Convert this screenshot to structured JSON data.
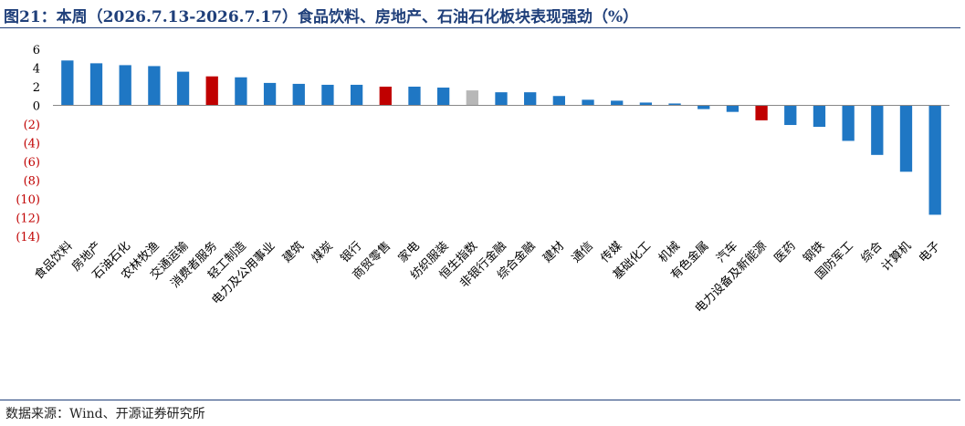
{
  "title": "图21：本周（2026.7.13-2026.7.17）食品饮料、房地产、石油石化板块表现强劲（%）",
  "source": "数据来源：Wind、开源证券研究所",
  "colors": {
    "default": "#1f77c4",
    "highlight": "#c00000",
    "index": "#b7b7b7",
    "title": "#1f3f7a",
    "negative_tick": "#c00000"
  },
  "chart_data": {
    "type": "bar",
    "title": "",
    "xlabel": "",
    "ylabel": "",
    "ylim": [
      -14,
      6
    ],
    "yticks": [
      6,
      4,
      2,
      0,
      -2,
      -4,
      -6,
      -8,
      -10,
      -12,
      -14
    ],
    "ytick_labels": [
      "6",
      "4",
      "2",
      "0",
      "(2)",
      "(4)",
      "(6)",
      "(8)",
      "(10)",
      "(12)",
      "(14)"
    ],
    "grid": false,
    "legend": "none",
    "categories": [
      "食品饮料",
      "房地产",
      "石油石化",
      "农林牧渔",
      "交通运输",
      "消费者服务",
      "轻工制造",
      "电力及公用事业",
      "建筑",
      "煤炭",
      "银行",
      "商贸零售",
      "家电",
      "纺织服装",
      "恒生指数",
      "非银行金融",
      "综合金融",
      "建材",
      "通信",
      "传媒",
      "基础化工",
      "机械",
      "有色金属",
      "汽车",
      "电力设备及新能源",
      "医药",
      "钢铁",
      "国防军工",
      "综合",
      "计算机",
      "电子"
    ],
    "values": [
      4.8,
      4.5,
      4.3,
      4.2,
      3.6,
      3.1,
      3.0,
      2.4,
      2.3,
      2.2,
      2.2,
      2.0,
      2.0,
      1.9,
      1.6,
      1.4,
      1.4,
      1.0,
      0.6,
      0.5,
      0.3,
      0.2,
      -0.4,
      -0.7,
      -1.6,
      -2.1,
      -2.3,
      -3.8,
      -5.3,
      -7.1,
      -11.7
    ],
    "bar_colors": [
      "default",
      "default",
      "default",
      "default",
      "default",
      "highlight",
      "default",
      "default",
      "default",
      "default",
      "default",
      "highlight",
      "default",
      "default",
      "index",
      "default",
      "default",
      "default",
      "default",
      "default",
      "default",
      "default",
      "default",
      "default",
      "highlight",
      "default",
      "default",
      "default",
      "default",
      "default",
      "default"
    ]
  }
}
